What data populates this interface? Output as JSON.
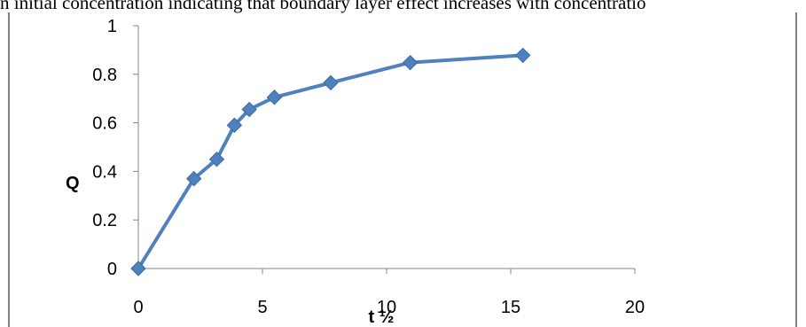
{
  "caption": "n initial concentration indicating that boundary layer effect increases with concentratio",
  "chart_data": {
    "type": "line",
    "title": "",
    "xlabel": "t ½",
    "ylabel": "Q",
    "xlim": [
      0,
      20
    ],
    "ylim": [
      0,
      1
    ],
    "x_ticks": [
      "0",
      "5",
      "10",
      "15",
      "20"
    ],
    "y_ticks": [
      "0",
      "0.2",
      "0.4",
      "0.6",
      "0.8",
      "1"
    ],
    "grid": false,
    "legend": "none",
    "series": [
      {
        "color": "#4f81bd",
        "marker": "diamond",
        "x": [
          0,
          2.24,
          3.16,
          3.87,
          4.47,
          5.48,
          7.75,
          10.95,
          15.49
        ],
        "y": [
          0,
          0.37,
          0.45,
          0.59,
          0.655,
          0.705,
          0.765,
          0.848,
          0.878
        ]
      }
    ]
  }
}
